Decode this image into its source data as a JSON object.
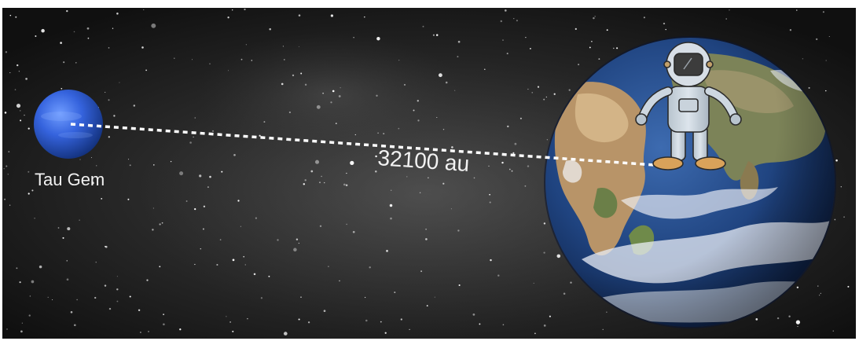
{
  "scene": {
    "planet_label": "Tau Gem",
    "distance_label": "32100 au"
  },
  "colors": {
    "space_background": "#141414",
    "planet_blue": "#2f5fd6",
    "earth_ocean": "#1f3f7f",
    "dashed_line": "#ffffff",
    "label_text": "#f2f2f2"
  },
  "icons": [
    "star-field",
    "planet-icon",
    "earth-icon",
    "astronaut-icon"
  ]
}
